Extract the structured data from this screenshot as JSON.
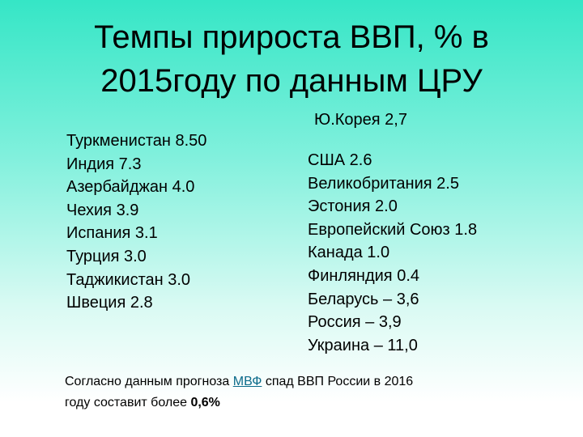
{
  "title": [
    "Темпы прироста ВВП, % в",
    "2015году по данным ЦРУ"
  ],
  "left_list": [
    "Туркменистан 8.50",
    "Индия 7.3",
    "Азербайджан 4.0",
    "Чехия 3.9",
    "Испания 3.1",
    "Турция 3.0",
    "Таджикистан 3.0",
    "Швеция 2.8"
  ],
  "right_top": "Ю.Корея 2,7",
  "right_list": [
    "США 2.6",
    "Великобритания 2.5",
    "Эстония 2.0",
    "Европейский Союз 1.8",
    "Канада 1.0",
    "Финляндия 0.4",
    "Беларусь – 3,6",
    "Россия – 3,9",
    "Украина – 11,0"
  ],
  "note": {
    "before_link": "Согласно данным прогноза ",
    "link": "МВФ",
    "after_link": " спад ВВП России в 2016",
    "line2": "году составит более ",
    "bold": "0,6%"
  }
}
